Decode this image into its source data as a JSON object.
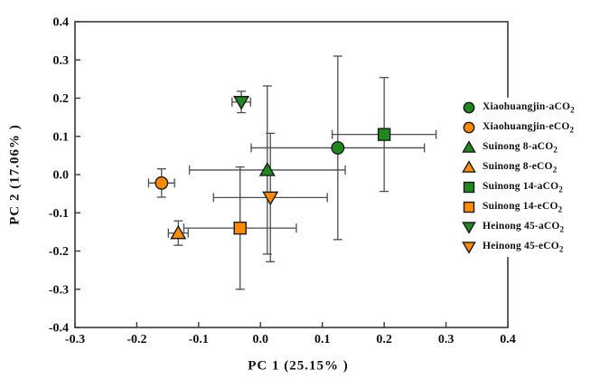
{
  "figure": {
    "background": "#ffffff",
    "axis_color": "#3a3a3a",
    "text_color": "#111111"
  },
  "chart_data": {
    "type": "scatter",
    "title": "",
    "xlabel": "PC 1 (25.15% )",
    "ylabel": "PC 2 (17.06% )",
    "xlim": [
      -0.3,
      0.4
    ],
    "ylim": [
      -0.4,
      0.4
    ],
    "x_ticks": [
      -0.3,
      -0.2,
      -0.1,
      0.0,
      0.1,
      0.2,
      0.3,
      0.4
    ],
    "x_tick_labels": [
      "-0.3",
      "-0.2",
      "-0.1",
      "0.0",
      "0.1",
      "0.2",
      "0.3",
      "0.4"
    ],
    "y_ticks": [
      -0.4,
      -0.3,
      -0.2,
      -0.1,
      0.0,
      0.1,
      0.2,
      0.3,
      0.4
    ],
    "y_tick_labels": [
      "-0.4",
      "-0.3",
      "-0.2",
      "-0.1",
      "0.0",
      "0.1",
      "0.2",
      "0.3",
      "0.4"
    ],
    "grid": false,
    "legend_position": "right",
    "error_bars": true,
    "error_bar_color": "#4d4d4d",
    "marker_outline_color": "#1a1a1a",
    "series": [
      {
        "label": "Xiaohuangjin-aCO",
        "label_sub": "2",
        "marker": "circle",
        "color": "#1E8A1E",
        "x": 0.125,
        "y": 0.07,
        "xerr": 0.14,
        "yerr": 0.24
      },
      {
        "label": "Xiaohuangjin-eCO",
        "label_sub": "2",
        "marker": "circle",
        "color": "#FF8C00",
        "x": -0.16,
        "y": -0.022,
        "xerr": 0.021,
        "yerr": 0.037
      },
      {
        "label": "Suinong 8-aCO",
        "label_sub": "2",
        "marker": "triangle-up",
        "color": "#1E8A1E",
        "x": 0.011,
        "y": 0.012,
        "xerr": 0.126,
        "yerr": 0.22
      },
      {
        "label": "Suinong 8-eCO",
        "label_sub": "2",
        "marker": "triangle-up",
        "color": "#FF8C00",
        "x": -0.133,
        "y": -0.153,
        "xerr": 0.016,
        "yerr": 0.032
      },
      {
        "label": "Suinong 14-aCO",
        "label_sub": "2",
        "marker": "square",
        "color": "#1E8A1E",
        "x": 0.2,
        "y": 0.105,
        "xerr": 0.084,
        "yerr": 0.149
      },
      {
        "label": "Suinong 14-eCO",
        "label_sub": "2",
        "marker": "square",
        "color": "#FF8C00",
        "x": -0.033,
        "y": -0.14,
        "xerr": 0.091,
        "yerr": 0.16
      },
      {
        "label": "Heinong 45-aCO",
        "label_sub": "2",
        "marker": "triangle-down",
        "color": "#1E8A1E",
        "x": -0.031,
        "y": 0.19,
        "xerr": 0.015,
        "yerr": 0.028
      },
      {
        "label": "Heinong 45-eCO",
        "label_sub": "2",
        "marker": "triangle-down",
        "color": "#FF8C00",
        "x": 0.016,
        "y": -0.06,
        "xerr": 0.092,
        "yerr": 0.168
      }
    ]
  }
}
